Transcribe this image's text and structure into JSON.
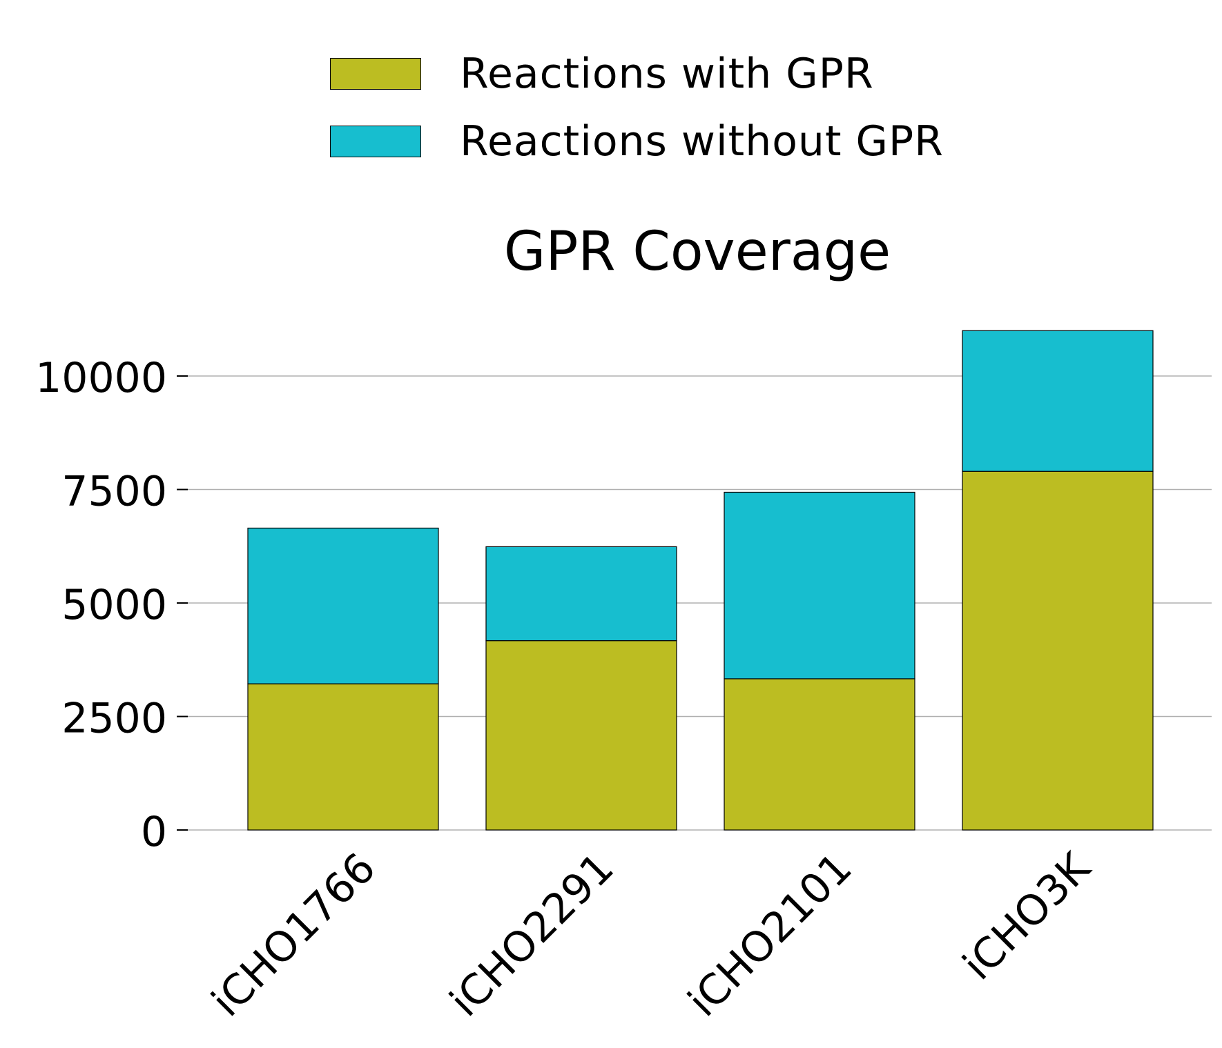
{
  "chart_data": {
    "type": "bar",
    "stacked": true,
    "title": "GPR Coverage",
    "categories": [
      "iCHO1766",
      "iCHO2291",
      "iCHO2101",
      "iCHO3K"
    ],
    "series": [
      {
        "name": "Reactions with GPR",
        "color": "#bcbd22",
        "values": [
          3220,
          4170,
          3330,
          7900
        ]
      },
      {
        "name": "Reactions without GPR",
        "color": "#17becf",
        "values": [
          3430,
          2070,
          4110,
          3100
        ]
      }
    ],
    "ylim": [
      0,
      11000
    ],
    "yticks": [
      "0",
      "2500",
      "5000",
      "7500",
      "10000"
    ],
    "grid": true,
    "legend_position": "top-center"
  }
}
